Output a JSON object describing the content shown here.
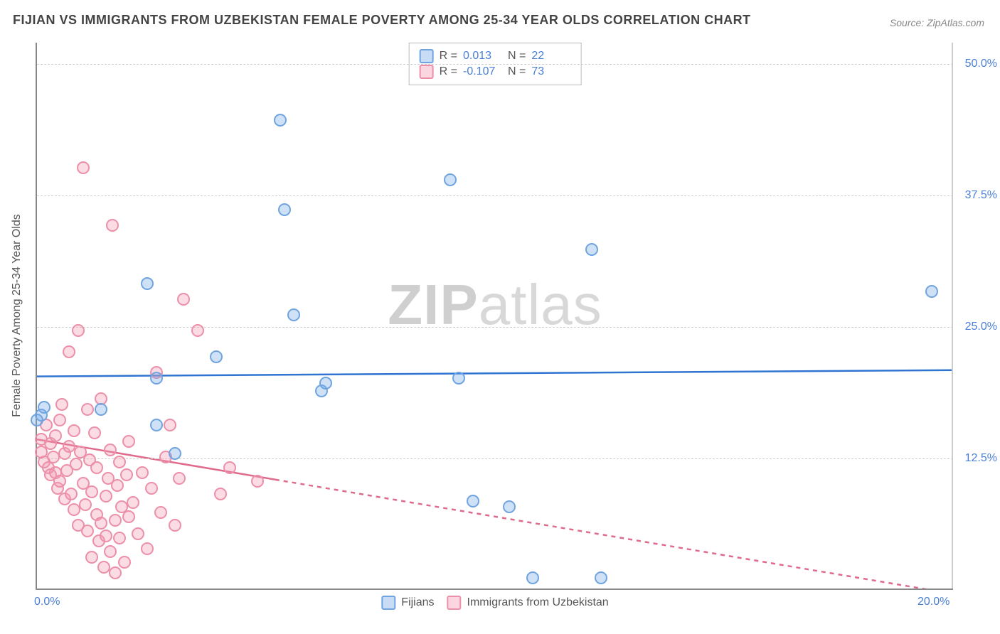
{
  "title": "FIJIAN VS IMMIGRANTS FROM UZBEKISTAN FEMALE POVERTY AMONG 25-34 YEAR OLDS CORRELATION CHART",
  "source": "Source: ZipAtlas.com",
  "watermark_a": "ZIP",
  "watermark_b": "atlas",
  "chart": {
    "type": "scatter",
    "ylabel": "Female Poverty Among 25-34 Year Olds",
    "xlim": [
      0,
      20
    ],
    "ylim": [
      0,
      52
    ],
    "xticks": [
      {
        "v": 0,
        "label": "0.0%"
      },
      {
        "v": 20,
        "label": "20.0%"
      }
    ],
    "yticks": [
      {
        "v": 12.5,
        "label": "12.5%"
      },
      {
        "v": 25.0,
        "label": "25.0%"
      },
      {
        "v": 37.5,
        "label": "37.5%"
      },
      {
        "v": 50.0,
        "label": "50.0%"
      }
    ],
    "colors": {
      "blue_fill": "#76a9e7",
      "blue_stroke": "#6fa4e0",
      "pink_fill": "#f499b1",
      "pink_stroke": "#ec8fa9",
      "trend_blue": "#2f74d0",
      "trend_pink": "#e06a8c",
      "grid": "#d0d0d0",
      "axis": "#888888",
      "tick_text": "#4a7fd6",
      "bg": "#ffffff"
    },
    "stats": [
      {
        "series": "blue",
        "R_label": "R =",
        "R": "0.013",
        "N_label": "N =",
        "N": "22"
      },
      {
        "series": "pink",
        "R_label": "R =",
        "R": "-0.107",
        "N_label": "N =",
        "N": "73"
      }
    ],
    "legend": [
      {
        "series": "blue",
        "label": "Fijians"
      },
      {
        "series": "pink",
        "label": "Immigrants from Uzbekistan"
      }
    ],
    "trend_lines": {
      "blue": {
        "y_at_x0": 20.2,
        "y_at_x20": 20.8,
        "solid_to_x": 20
      },
      "pink": {
        "y_at_x0": 14.2,
        "y_at_x20": -0.5,
        "solid_to_x": 5.2
      }
    },
    "series_blue": [
      {
        "x": 0.1,
        "y": 16.5
      },
      {
        "x": 0.15,
        "y": 17.2
      },
      {
        "x": 0.0,
        "y": 16.0
      },
      {
        "x": 1.4,
        "y": 17.0
      },
      {
        "x": 2.6,
        "y": 15.5
      },
      {
        "x": 2.6,
        "y": 20.0
      },
      {
        "x": 3.0,
        "y": 12.8
      },
      {
        "x": 3.9,
        "y": 22.0
      },
      {
        "x": 2.4,
        "y": 29.0
      },
      {
        "x": 5.3,
        "y": 44.5
      },
      {
        "x": 5.4,
        "y": 36.0
      },
      {
        "x": 5.6,
        "y": 26.0
      },
      {
        "x": 6.2,
        "y": 18.8
      },
      {
        "x": 6.3,
        "y": 19.5
      },
      {
        "x": 9.0,
        "y": 38.8
      },
      {
        "x": 9.2,
        "y": 20.0
      },
      {
        "x": 9.5,
        "y": 8.3
      },
      {
        "x": 10.3,
        "y": 7.8
      },
      {
        "x": 12.1,
        "y": 32.2
      },
      {
        "x": 10.8,
        "y": 1.0
      },
      {
        "x": 12.3,
        "y": 1.0
      },
      {
        "x": 19.5,
        "y": 28.2
      }
    ],
    "series_pink": [
      {
        "x": 0.1,
        "y": 14.2
      },
      {
        "x": 0.1,
        "y": 13.0
      },
      {
        "x": 0.15,
        "y": 12.0
      },
      {
        "x": 0.2,
        "y": 15.5
      },
      {
        "x": 0.25,
        "y": 11.5
      },
      {
        "x": 0.3,
        "y": 10.8
      },
      {
        "x": 0.3,
        "y": 13.8
      },
      {
        "x": 0.35,
        "y": 12.5
      },
      {
        "x": 0.4,
        "y": 11.0
      },
      {
        "x": 0.4,
        "y": 14.5
      },
      {
        "x": 0.45,
        "y": 9.5
      },
      {
        "x": 0.5,
        "y": 16.0
      },
      {
        "x": 0.5,
        "y": 10.2
      },
      {
        "x": 0.55,
        "y": 17.5
      },
      {
        "x": 0.6,
        "y": 12.8
      },
      {
        "x": 0.6,
        "y": 8.5
      },
      {
        "x": 0.65,
        "y": 11.2
      },
      {
        "x": 0.7,
        "y": 22.5
      },
      {
        "x": 0.7,
        "y": 13.5
      },
      {
        "x": 0.75,
        "y": 9.0
      },
      {
        "x": 0.8,
        "y": 15.0
      },
      {
        "x": 0.8,
        "y": 7.5
      },
      {
        "x": 0.85,
        "y": 11.8
      },
      {
        "x": 0.9,
        "y": 24.5
      },
      {
        "x": 0.9,
        "y": 6.0
      },
      {
        "x": 0.95,
        "y": 13.0
      },
      {
        "x": 1.0,
        "y": 40.0
      },
      {
        "x": 1.0,
        "y": 10.0
      },
      {
        "x": 1.05,
        "y": 8.0
      },
      {
        "x": 1.1,
        "y": 17.0
      },
      {
        "x": 1.1,
        "y": 5.5
      },
      {
        "x": 1.15,
        "y": 12.2
      },
      {
        "x": 1.2,
        "y": 9.2
      },
      {
        "x": 1.2,
        "y": 3.0
      },
      {
        "x": 1.25,
        "y": 14.8
      },
      {
        "x": 1.3,
        "y": 7.0
      },
      {
        "x": 1.3,
        "y": 11.5
      },
      {
        "x": 1.35,
        "y": 4.5
      },
      {
        "x": 1.4,
        "y": 6.2
      },
      {
        "x": 1.4,
        "y": 18.0
      },
      {
        "x": 1.45,
        "y": 2.0
      },
      {
        "x": 1.5,
        "y": 8.8
      },
      {
        "x": 1.5,
        "y": 5.0
      },
      {
        "x": 1.55,
        "y": 10.5
      },
      {
        "x": 1.6,
        "y": 3.5
      },
      {
        "x": 1.6,
        "y": 13.2
      },
      {
        "x": 1.65,
        "y": 34.5
      },
      {
        "x": 1.7,
        "y": 6.5
      },
      {
        "x": 1.7,
        "y": 1.5
      },
      {
        "x": 1.75,
        "y": 9.8
      },
      {
        "x": 1.8,
        "y": 4.8
      },
      {
        "x": 1.8,
        "y": 12.0
      },
      {
        "x": 1.85,
        "y": 7.8
      },
      {
        "x": 1.9,
        "y": 2.5
      },
      {
        "x": 1.95,
        "y": 10.8
      },
      {
        "x": 2.0,
        "y": 6.8
      },
      {
        "x": 2.0,
        "y": 14.0
      },
      {
        "x": 2.1,
        "y": 8.2
      },
      {
        "x": 2.2,
        "y": 5.2
      },
      {
        "x": 2.3,
        "y": 11.0
      },
      {
        "x": 2.4,
        "y": 3.8
      },
      {
        "x": 2.5,
        "y": 9.5
      },
      {
        "x": 2.6,
        "y": 20.5
      },
      {
        "x": 2.7,
        "y": 7.2
      },
      {
        "x": 2.8,
        "y": 12.5
      },
      {
        "x": 2.9,
        "y": 15.5
      },
      {
        "x": 3.0,
        "y": 6.0
      },
      {
        "x": 3.1,
        "y": 10.5
      },
      {
        "x": 3.2,
        "y": 27.5
      },
      {
        "x": 3.5,
        "y": 24.5
      },
      {
        "x": 4.0,
        "y": 9.0
      },
      {
        "x": 4.2,
        "y": 11.5
      },
      {
        "x": 4.8,
        "y": 10.2
      }
    ]
  }
}
